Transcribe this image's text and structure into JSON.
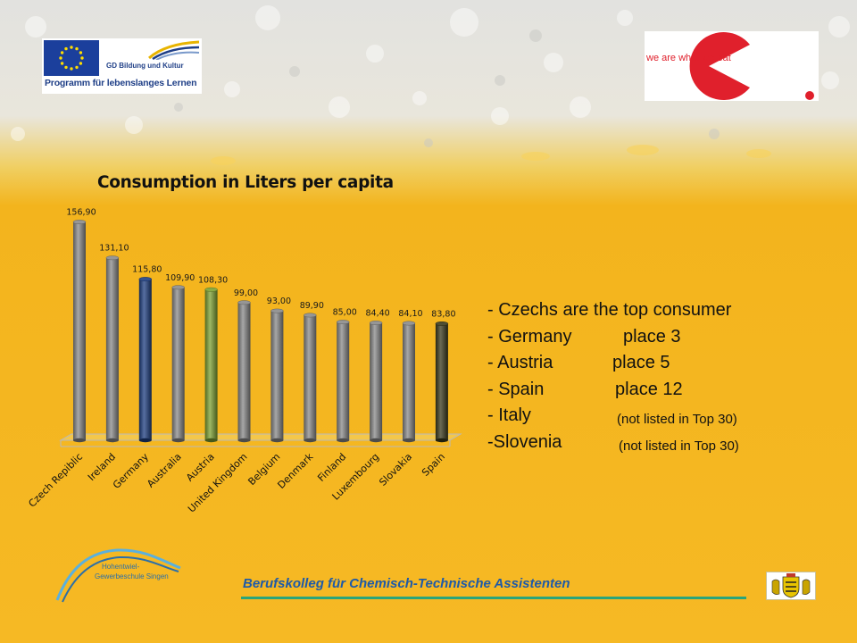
{
  "header": {
    "eu_logo": {
      "line1": "GD Bildung und Kultur",
      "line2": "Programm für lebenslanges Lernen"
    },
    "right_logo": {
      "text": "we are what we eat"
    }
  },
  "chart_data": {
    "type": "bar",
    "title": "Consumption in Liters per capita",
    "categories": [
      "Czech Repiblic",
      "Ireland",
      "Germany",
      "Australia",
      "Austria",
      "United Kingdom",
      "Belgium",
      "Denmark",
      "Finland",
      "Luxembourg",
      "Slovakia",
      "Spain"
    ],
    "values": [
      156.9,
      131.1,
      115.8,
      109.9,
      108.3,
      99.0,
      93.0,
      89.9,
      85.0,
      84.4,
      84.1,
      83.8
    ],
    "value_labels": [
      "156,90",
      "131,10",
      "115,80",
      "109,90",
      "108,30",
      "99,00",
      "93,00",
      "89,90",
      "85,00",
      "84,40",
      "84,10",
      "83,80"
    ],
    "colors": [
      "#8a8a8a",
      "#8a8a8a",
      "#1f3f82",
      "#8a8a8a",
      "#7da231",
      "#8a8a8a",
      "#8a8a8a",
      "#8a8a8a",
      "#8a8a8a",
      "#8a8a8a",
      "#8a8a8a",
      "#3b3a1c"
    ],
    "xlabel": "",
    "ylabel": "",
    "grid": false,
    "bar_style": "3d-cylinder"
  },
  "notes": [
    {
      "label": "- Czechs are the top consumer",
      "place": "",
      "small": ""
    },
    {
      "label": "- Germany",
      "place": "place 3",
      "small": ""
    },
    {
      "label": "- Austria",
      "place": "place 5",
      "small": ""
    },
    {
      "label": "- Spain",
      "place": "place 12",
      "small": ""
    },
    {
      "label": "- Italy",
      "place": "",
      "small": "(not listed in Top 30)"
    },
    {
      "label": "-Slovenia",
      "place": "",
      "small": "(not listed in Top 30)"
    }
  ],
  "footer": {
    "school_line1": "Hohentwiel-",
    "school_line2": "Gewerbeschule Singen",
    "text": "Berufskolleg für Chemisch-Technische Assistenten",
    "accent": "#2aa57a"
  }
}
